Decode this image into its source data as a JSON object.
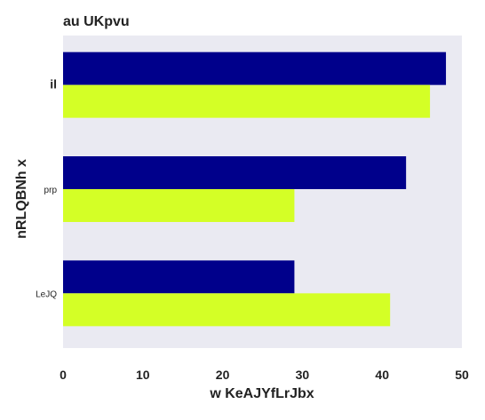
{
  "chart_data": {
    "type": "bar",
    "orientation": "horizontal",
    "title": "au UKpvu",
    "xlabel": "w KeAJYfLrJbx",
    "ylabel": "nRLQBNh x",
    "categories": [
      "il",
      "prp",
      "LeJQ"
    ],
    "series": [
      {
        "values": [
          48,
          43,
          29
        ]
      },
      {
        "values": [
          46,
          29,
          41
        ]
      }
    ],
    "xlim": [
      0,
      50
    ],
    "xticks": [
      0,
      10,
      20,
      30,
      40,
      50
    ],
    "grid": false
  },
  "colors": {
    "background": "#ffffff",
    "plot_area": "#eaeaf2",
    "series": [
      "#00008b",
      "#d4ff26"
    ],
    "text": "#222222"
  }
}
